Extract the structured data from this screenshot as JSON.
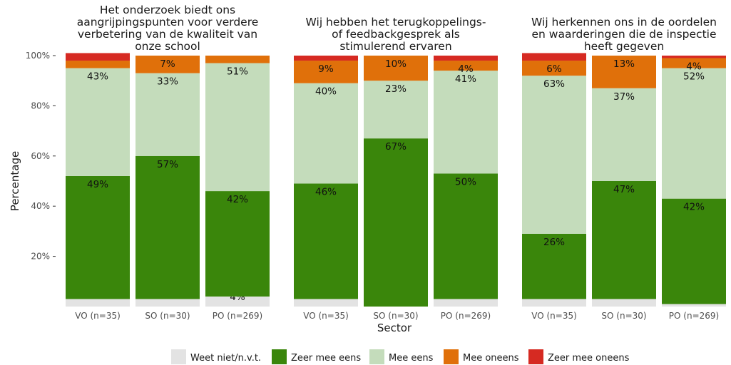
{
  "chart_data": {
    "type": "bar",
    "stacked": true,
    "xlabel": "Sector",
    "ylabel": "Percentage",
    "ylim": [
      0,
      100
    ],
    "y_ticks": [
      "20%",
      "40%",
      "60%",
      "80%",
      "100%"
    ],
    "grid": false,
    "legend_position": "bottom",
    "categories": [
      "VO (n=35)",
      "SO (n=30)",
      "PO (n=269)"
    ],
    "legend": [
      {
        "name": "Weet niet/n.v.t.",
        "color": "#e3e3e3"
      },
      {
        "name": "Zeer mee eens",
        "color": "#3a860b"
      },
      {
        "name": "Mee eens",
        "color": "#c4dcbb"
      },
      {
        "name": "Mee oneens",
        "color": "#e0700a"
      },
      {
        "name": "Zeer mee oneens",
        "color": "#d62a22"
      }
    ],
    "panels": [
      {
        "title": [
          "Het onderzoek biedt ons",
          "aangrijpingspunten voor verdere",
          "verbetering van de kwaliteit van",
          "onze school"
        ],
        "bars": [
          {
            "category": "VO (n=35)",
            "values": [
              3,
              49,
              43,
              3,
              3
            ],
            "labels": [
              "",
              "49%",
              "43%",
              "",
              ""
            ]
          },
          {
            "category": "SO (n=30)",
            "values": [
              3,
              57,
              33,
              7,
              0
            ],
            "labels": [
              "",
              "57%",
              "33%",
              "7%",
              ""
            ]
          },
          {
            "category": "PO (n=269)",
            "values": [
              4,
              42,
              51,
              3,
              0
            ],
            "labels": [
              "4%",
              "42%",
              "51%",
              "",
              ""
            ]
          }
        ]
      },
      {
        "title": [
          "Wij hebben het terugkoppelings-",
          "of feedbackgesprek als",
          "stimulerend ervaren"
        ],
        "bars": [
          {
            "category": "VO (n=35)",
            "values": [
              3,
              46,
              40,
              9,
              2
            ],
            "labels": [
              "",
              "46%",
              "40%",
              "9%",
              ""
            ]
          },
          {
            "category": "SO (n=30)",
            "values": [
              0,
              67,
              23,
              10,
              0
            ],
            "labels": [
              "",
              "67%",
              "23%",
              "10%",
              ""
            ]
          },
          {
            "category": "PO (n=269)",
            "values": [
              3,
              50,
              41,
              4,
              2
            ],
            "labels": [
              "",
              "50%",
              "41%",
              "4%",
              ""
            ]
          }
        ]
      },
      {
        "title": [
          "Wij herkennen ons in de oordelen",
          "en waarderingen die de inspectie",
          "heeft gegeven"
        ],
        "bars": [
          {
            "category": "VO (n=35)",
            "values": [
              3,
              26,
              63,
              6,
              3
            ],
            "labels": [
              "",
              "26%",
              "63%",
              "6%",
              ""
            ]
          },
          {
            "category": "SO (n=30)",
            "values": [
              3,
              47,
              37,
              13,
              0
            ],
            "labels": [
              "",
              "47%",
              "37%",
              "13%",
              ""
            ]
          },
          {
            "category": "PO (n=269)",
            "values": [
              1,
              42,
              52,
              4,
              1
            ],
            "labels": [
              "",
              "42%",
              "52%",
              "4%",
              ""
            ]
          }
        ]
      }
    ]
  }
}
